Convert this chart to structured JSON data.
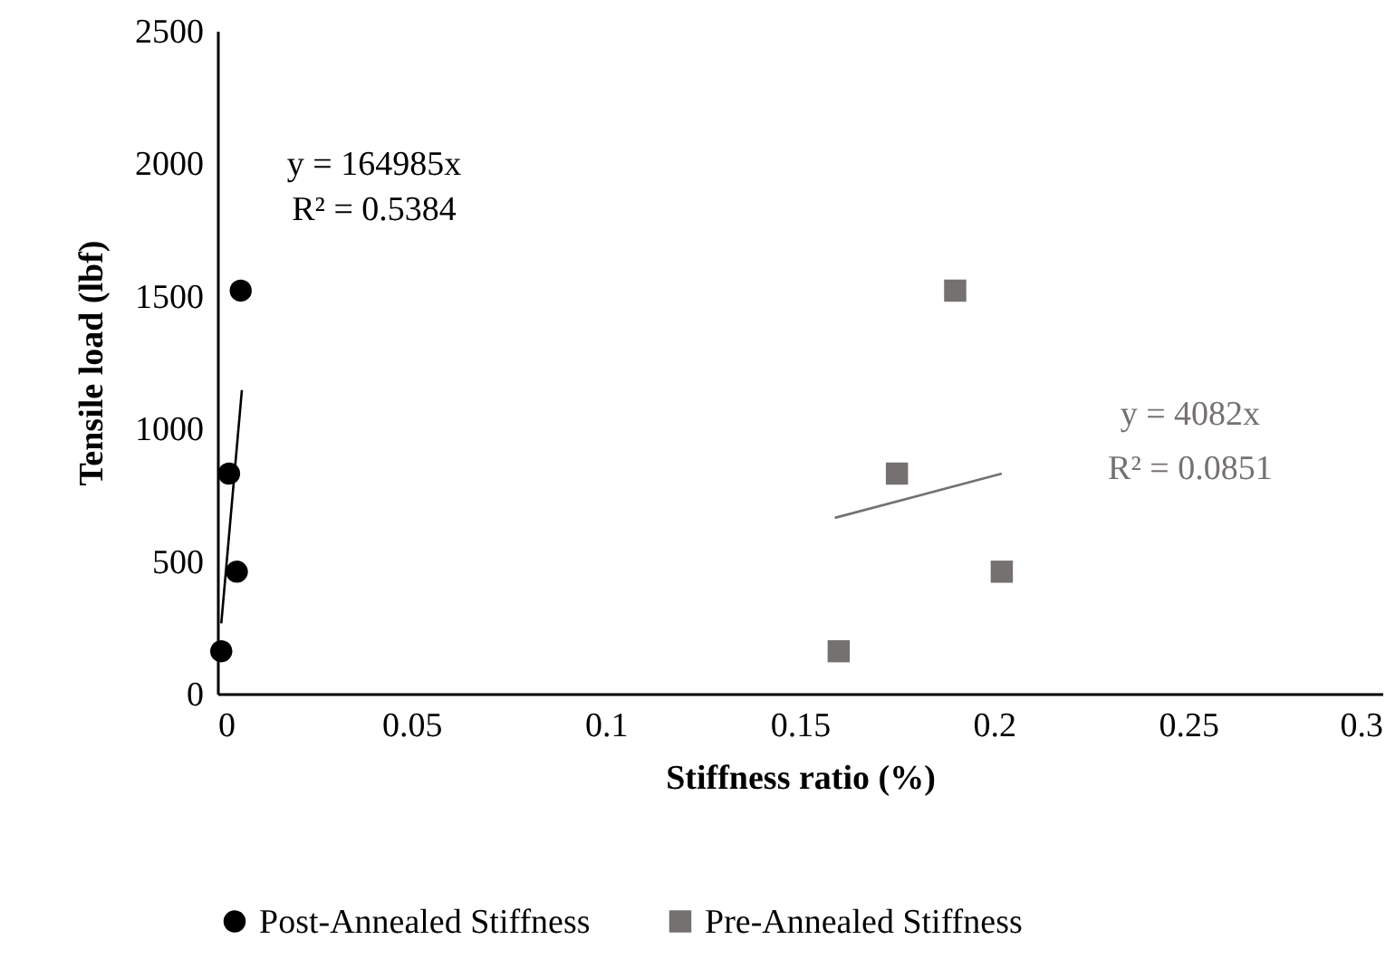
{
  "chart_data": {
    "type": "scatter",
    "xlabel": "Stiffness ratio (%)",
    "ylabel": "Tensile load (lbf)",
    "xlim": [
      0,
      0.3
    ],
    "xticks": [
      0,
      0.05,
      0.1,
      0.15,
      0.2,
      0.25,
      0.3
    ],
    "ylim": [
      0,
      2500
    ],
    "yticks": [
      0,
      500,
      1000,
      1500,
      2000,
      2500
    ],
    "grid": false,
    "legend": "bottom",
    "series": [
      {
        "name": "Post-Annealed Stiffness",
        "marker": "circle",
        "color": "#000000",
        "x": [
          0.001,
          0.003,
          0.005,
          0.006
        ],
        "values": [
          160,
          830,
          460,
          1520
        ]
      },
      {
        "name": "Pre-Annealed Stiffness",
        "marker": "square",
        "color": "#767171",
        "x": [
          0.16,
          0.175,
          0.19,
          0.202
        ],
        "values": [
          160,
          830,
          1520,
          460
        ]
      },
      {
        "type": "line",
        "color": "#000000",
        "x": [
          0.001,
          0.0063
        ],
        "values": [
          265,
          1145
        ]
      },
      {
        "type": "line",
        "color": "#767171",
        "x": [
          0.159,
          0.202
        ],
        "values": [
          663,
          830
        ]
      }
    ],
    "annotations": [
      "y = 164985x",
      "R² = 0.5384",
      "y = 4082x",
      "R² = 0.0851"
    ]
  }
}
